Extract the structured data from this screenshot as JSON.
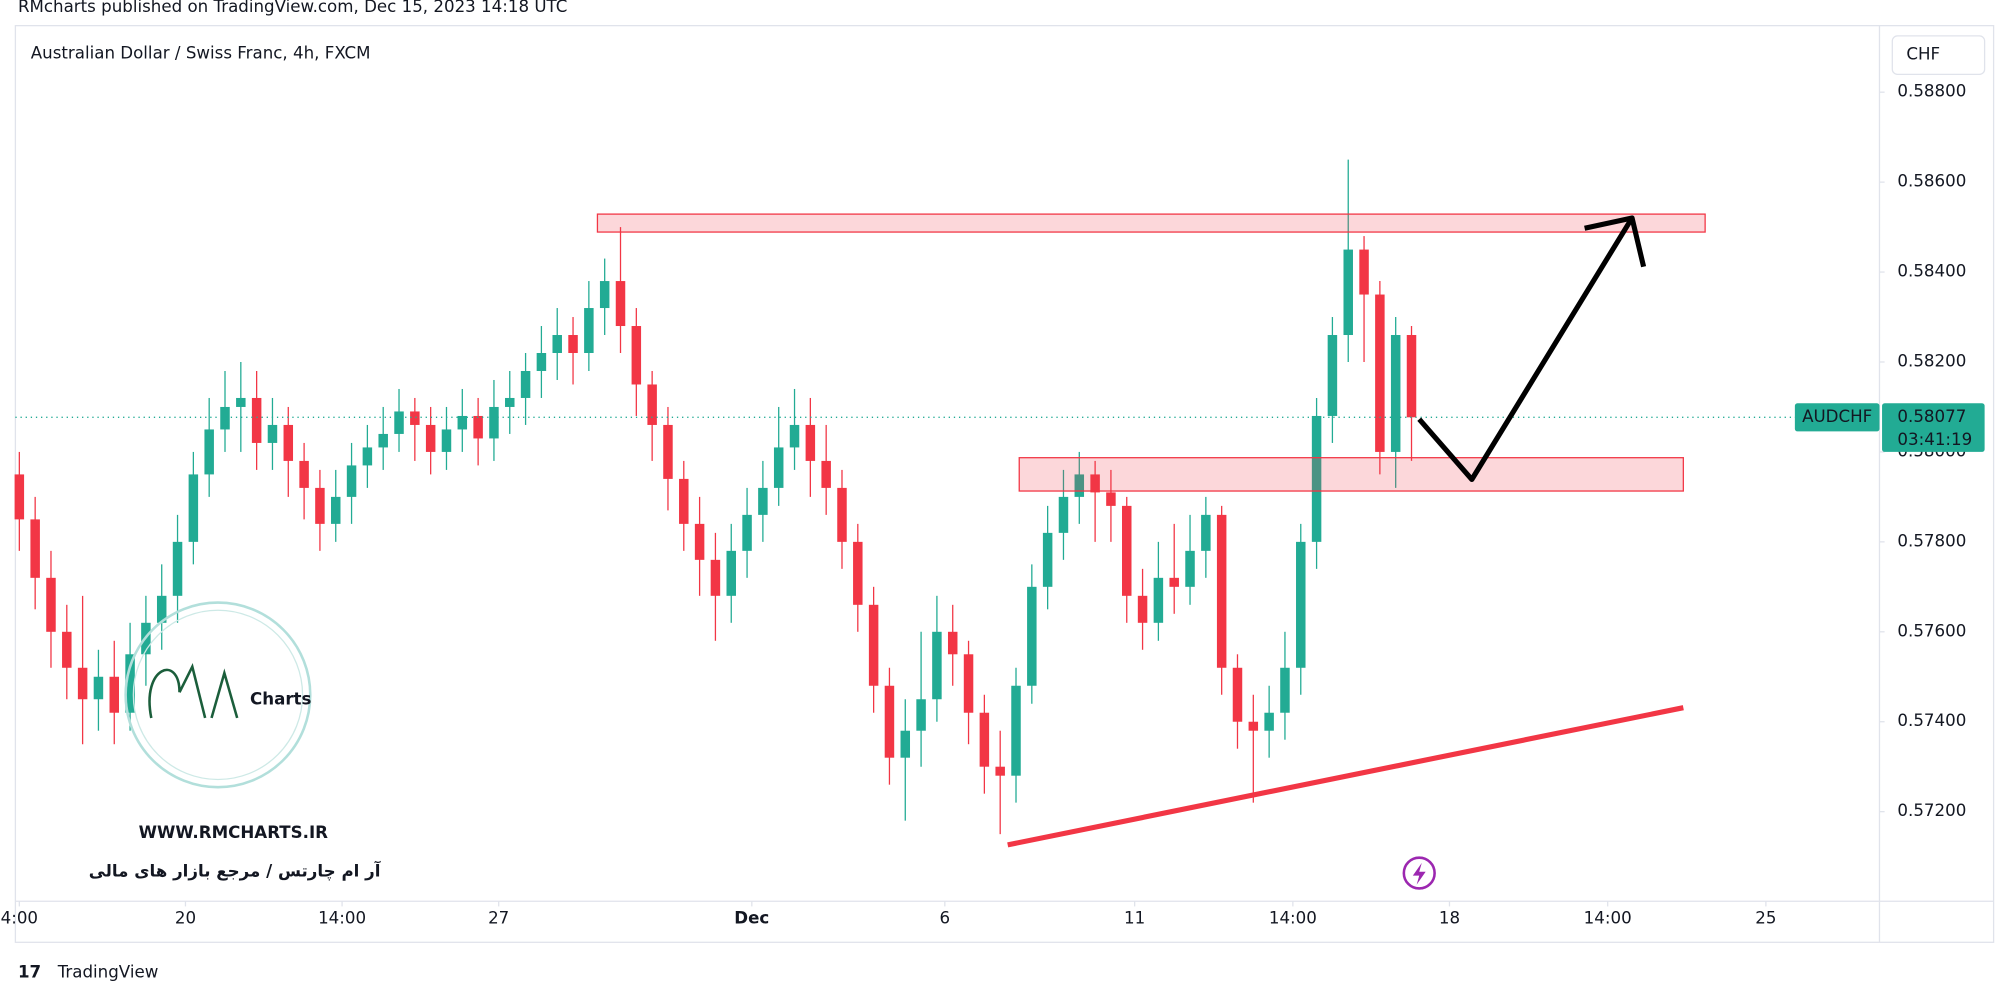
{
  "header": "RMcharts published on TradingView.com, Dec 15, 2023 14:18 UTC",
  "footer": "TradingView",
  "chart_data": {
    "type": "candlestick",
    "title": "Australian Dollar / Swiss Franc, 4h, FXCM",
    "currency": "CHF",
    "symbol": "AUDCHF",
    "last_price": 0.58077,
    "countdown": "03:41:19",
    "up_color": "#22ab94",
    "down_color": "#f23645",
    "watermark": {
      "brand": "Charts",
      "url": "WWW.RMCHARTS.IR",
      "tagline": "آر ام چارتس / مرجع بازار های مالی"
    },
    "open": [
      0.5795,
      0.5785,
      0.5772,
      0.576,
      0.5752,
      0.5745,
      0.575,
      0.5742,
      0.5755,
      0.5762,
      0.5768,
      0.578,
      0.5795,
      0.5805,
      0.581,
      0.5812,
      0.5802,
      0.5806,
      0.5798,
      0.5792,
      0.5784,
      0.579,
      0.5797,
      0.5801,
      0.5804,
      0.5809,
      0.5806,
      0.58,
      0.5805,
      0.5808,
      0.5803,
      0.581,
      0.5812,
      0.5818,
      0.5822,
      0.5826,
      0.5822,
      0.5832,
      0.5838,
      0.5828,
      0.5815,
      0.5806,
      0.5794,
      0.5784,
      0.5776,
      0.5768,
      0.5778,
      0.5786,
      0.5792,
      0.5801,
      0.5806,
      0.5798,
      0.5792,
      0.578,
      0.5766,
      0.5748,
      0.5732,
      0.5738,
      0.5745,
      0.576,
      0.5755,
      0.5742,
      0.573,
      0.5728,
      0.5748,
      0.577,
      0.5782,
      0.579,
      0.5795,
      0.5791,
      0.5788,
      0.5768,
      0.5762,
      0.5772,
      0.577,
      0.5778,
      0.5786,
      0.5752,
      0.574,
      0.5738,
      0.5742,
      0.5752,
      0.578,
      0.5808,
      0.5826,
      0.5845,
      0.5835,
      0.58,
      0.5826
    ],
    "high": [
      0.58,
      0.579,
      0.5778,
      0.5766,
      0.5768,
      0.5756,
      0.5758,
      0.5762,
      0.5768,
      0.5775,
      0.5786,
      0.58,
      0.5812,
      0.5818,
      0.582,
      0.5818,
      0.5812,
      0.581,
      0.5802,
      0.5796,
      0.5796,
      0.5802,
      0.5806,
      0.581,
      0.5814,
      0.5812,
      0.581,
      0.581,
      0.5814,
      0.5812,
      0.5816,
      0.5818,
      0.5822,
      0.5828,
      0.5832,
      0.583,
      0.5838,
      0.5843,
      0.585,
      0.5832,
      0.5818,
      0.581,
      0.5798,
      0.579,
      0.5782,
      0.5784,
      0.5792,
      0.5798,
      0.581,
      0.5814,
      0.5812,
      0.5806,
      0.5796,
      0.5784,
      0.577,
      0.5752,
      0.5745,
      0.576,
      0.5768,
      0.5766,
      0.5758,
      0.5746,
      0.5738,
      0.5752,
      0.5775,
      0.5788,
      0.5796,
      0.58,
      0.5798,
      0.5796,
      0.579,
      0.5774,
      0.578,
      0.5784,
      0.5786,
      0.579,
      0.5788,
      0.5755,
      0.5746,
      0.5748,
      0.576,
      0.5784,
      0.5812,
      0.583,
      0.5865,
      0.5848,
      0.5838,
      0.583,
      0.5828
    ],
    "low": [
      0.5778,
      0.5765,
      0.5752,
      0.5745,
      0.5735,
      0.5738,
      0.5735,
      0.5738,
      0.5748,
      0.5756,
      0.5762,
      0.5775,
      0.579,
      0.58,
      0.58,
      0.5796,
      0.5796,
      0.579,
      0.5785,
      0.5778,
      0.578,
      0.5784,
      0.5792,
      0.5796,
      0.58,
      0.5798,
      0.5795,
      0.5796,
      0.58,
      0.5797,
      0.5798,
      0.5804,
      0.5806,
      0.5812,
      0.5816,
      0.5815,
      0.5818,
      0.5826,
      0.5822,
      0.5808,
      0.5798,
      0.5787,
      0.5778,
      0.5768,
      0.5758,
      0.5762,
      0.5772,
      0.578,
      0.5788,
      0.5796,
      0.579,
      0.5786,
      0.5774,
      0.576,
      0.5742,
      0.5726,
      0.5718,
      0.573,
      0.574,
      0.5748,
      0.5735,
      0.5724,
      0.5715,
      0.5722,
      0.5744,
      0.5765,
      0.5776,
      0.5784,
      0.578,
      0.578,
      0.5762,
      0.5756,
      0.5758,
      0.5764,
      0.5766,
      0.5772,
      0.5746,
      0.5734,
      0.5722,
      0.5732,
      0.5736,
      0.5746,
      0.5774,
      0.5802,
      0.582,
      0.582,
      0.5795,
      0.5792,
      0.5798
    ],
    "close": [
      0.5785,
      0.5772,
      0.576,
      0.5752,
      0.5745,
      0.575,
      0.5742,
      0.5755,
      0.5762,
      0.5768,
      0.578,
      0.5795,
      0.5805,
      0.581,
      0.5812,
      0.5802,
      0.5806,
      0.5798,
      0.5792,
      0.5784,
      0.579,
      0.5797,
      0.5801,
      0.5804,
      0.5809,
      0.5806,
      0.58,
      0.5805,
      0.5808,
      0.5803,
      0.581,
      0.5812,
      0.5818,
      0.5822,
      0.5826,
      0.5822,
      0.5832,
      0.5838,
      0.5828,
      0.5815,
      0.5806,
      0.5794,
      0.5784,
      0.5776,
      0.5768,
      0.5778,
      0.5786,
      0.5792,
      0.5801,
      0.5806,
      0.5798,
      0.5792,
      0.578,
      0.5766,
      0.5748,
      0.5732,
      0.5738,
      0.5745,
      0.576,
      0.5755,
      0.5742,
      0.573,
      0.5728,
      0.5748,
      0.577,
      0.5782,
      0.579,
      0.5795,
      0.5791,
      0.5788,
      0.5768,
      0.5762,
      0.5772,
      0.577,
      0.5778,
      0.5786,
      0.5752,
      0.574,
      0.5738,
      0.5742,
      0.5752,
      0.578,
      0.5808,
      0.5826,
      0.5845,
      0.5835,
      0.58,
      0.5826,
      0.58077
    ],
    "ylim": [
      0.56995,
      0.58948
    ],
    "yticks": [
      {
        "value": 0.572,
        "label": "0.57200"
      },
      {
        "value": 0.574,
        "label": "0.57400"
      },
      {
        "value": 0.576,
        "label": "0.57600"
      },
      {
        "value": 0.578,
        "label": "0.57800"
      },
      {
        "value": 0.58,
        "label": "0.58000"
      },
      {
        "value": 0.582,
        "label": "0.58200"
      },
      {
        "value": 0.584,
        "label": "0.58400"
      },
      {
        "value": 0.586,
        "label": "0.58600"
      },
      {
        "value": 0.588,
        "label": "0.58800"
      }
    ],
    "xlim": [
      -0.25,
      117.5
    ],
    "xticks": [
      {
        "value": 0,
        "label": "4:00"
      },
      {
        "value": 10.5,
        "label": "20"
      },
      {
        "value": 20.4,
        "label": "14:00"
      },
      {
        "value": 30.3,
        "label": "27"
      },
      {
        "value": 46.3,
        "label": "Dec"
      },
      {
        "value": 58.5,
        "label": "6"
      },
      {
        "value": 70.5,
        "label": "11"
      },
      {
        "value": 80.5,
        "label": "14:00"
      },
      {
        "value": 90.4,
        "label": "18"
      },
      {
        "value": 100.4,
        "label": "14:00"
      },
      {
        "value": 110.4,
        "label": "25"
      }
    ]
  }
}
